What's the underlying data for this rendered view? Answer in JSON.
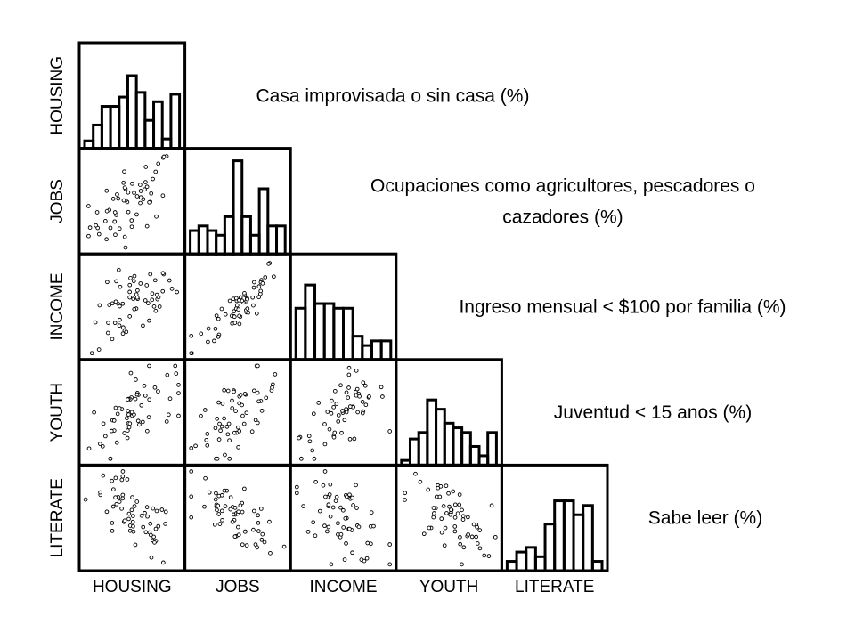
{
  "chart_data": {
    "type": "scatter-matrix",
    "variables": [
      "HOUSING",
      "JOBS",
      "INCOME",
      "YOUTH",
      "LITERATE"
    ],
    "descriptions": [
      [
        "Casa improvisada o sin casa (%)"
      ],
      [
        "Ocupaciones como agricultores, pescadores o",
        "cazadores (%)"
      ],
      [
        "Ingreso mensual < $100 por familia (%)"
      ],
      [
        "Juventud < 15 anos (%)"
      ],
      [
        "Sabe leer (%)"
      ]
    ],
    "histograms": [
      [
        0.08,
        0.25,
        0.45,
        0.45,
        0.55,
        0.78,
        0.6,
        0.3,
        0.5,
        0.1,
        0.58
      ],
      [
        0.25,
        0.3,
        0.25,
        0.2,
        0.4,
        1.0,
        0.4,
        0.2,
        0.7,
        0.3,
        0.3
      ],
      [
        0.55,
        0.8,
        0.6,
        0.6,
        0.55,
        0.55,
        0.25,
        0.15,
        0.2,
        0.2
      ],
      [
        0.05,
        0.28,
        0.35,
        0.7,
        0.6,
        0.45,
        0.4,
        0.35,
        0.2,
        0.1,
        0.35
      ],
      [
        0.1,
        0.2,
        0.25,
        0.15,
        0.5,
        0.75,
        0.75,
        0.6,
        0.7,
        0.1
      ]
    ],
    "correlations": {
      "JOBS-HOUSING": 0.6,
      "INCOME-HOUSING": 0.55,
      "INCOME-JOBS": 0.85,
      "YOUTH-HOUSING": 0.55,
      "YOUTH-JOBS": 0.65,
      "YOUTH-INCOME": 0.55,
      "LITERATE-HOUSING": -0.6,
      "LITERATE-JOBS": -0.75,
      "LITERATE-INCOME": -0.6,
      "LITERATE-YOUTH": -0.55
    },
    "n_points": 60,
    "grid": false
  }
}
